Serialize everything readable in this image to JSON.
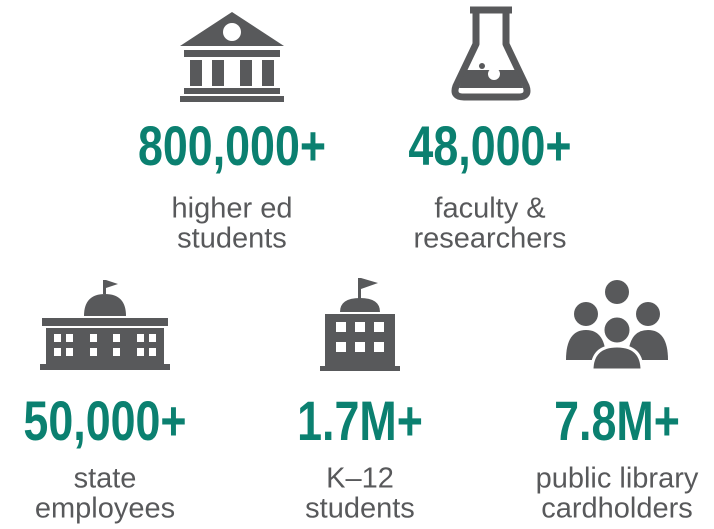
{
  "items": [
    {
      "value": "800,000+",
      "lines": [
        "higher ed",
        "students"
      ]
    },
    {
      "value": "48,000+",
      "lines": [
        "faculty &",
        "researchers"
      ]
    },
    {
      "value": "50,000+",
      "lines": [
        "state",
        "employees"
      ]
    },
    {
      "value": "1.7M+",
      "lines": [
        "K–12",
        "students"
      ]
    },
    {
      "value": "7.8M+",
      "lines": [
        "public library",
        "cardholders"
      ]
    }
  ]
}
